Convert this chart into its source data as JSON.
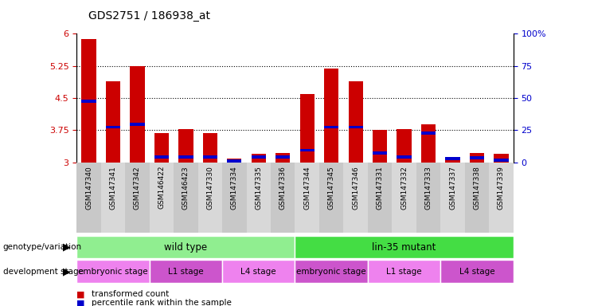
{
  "title": "GDS2751 / 186938_at",
  "samples": [
    "GSM147340",
    "GSM147341",
    "GSM147342",
    "GSM146422",
    "GSM146423",
    "GSM147330",
    "GSM147334",
    "GSM147335",
    "GSM147336",
    "GSM147344",
    "GSM147345",
    "GSM147346",
    "GSM147331",
    "GSM147332",
    "GSM147333",
    "GSM147337",
    "GSM147338",
    "GSM147339"
  ],
  "red_values": [
    5.88,
    4.88,
    5.25,
    3.68,
    3.78,
    3.68,
    3.08,
    3.2,
    3.22,
    4.6,
    5.18,
    4.88,
    3.75,
    3.78,
    3.88,
    3.12,
    3.22,
    3.2
  ],
  "blue_values": [
    4.42,
    3.82,
    3.88,
    3.12,
    3.12,
    3.12,
    3.03,
    3.12,
    3.12,
    3.28,
    3.82,
    3.82,
    3.22,
    3.12,
    3.68,
    3.08,
    3.1,
    3.05
  ],
  "ylim_left": [
    3.0,
    6.0
  ],
  "ylim_right": [
    0,
    100
  ],
  "yticks_left": [
    3.0,
    3.75,
    4.5,
    5.25,
    6.0
  ],
  "yticks_right": [
    0,
    25,
    50,
    75,
    100
  ],
  "ytick_labels_left": [
    "3",
    "3.75",
    "4.5",
    "5.25",
    "6"
  ],
  "ytick_labels_right": [
    "0",
    "25",
    "50",
    "75",
    "100%"
  ],
  "hlines": [
    3.75,
    4.5,
    5.25
  ],
  "bar_color": "#cc0000",
  "blue_color": "#0000cc",
  "bar_width": 0.6,
  "genotype_groups": [
    {
      "label": "wild type",
      "start": 0,
      "end": 9,
      "color": "#90ee90"
    },
    {
      "label": "lin-35 mutant",
      "start": 9,
      "end": 18,
      "color": "#44dd44"
    }
  ],
  "stage_groups": [
    {
      "label": "embryonic stage",
      "start": 0,
      "end": 3,
      "color": "#ee82ee"
    },
    {
      "label": "L1 stage",
      "start": 3,
      "end": 6,
      "color": "#cc55cc"
    },
    {
      "label": "L4 stage",
      "start": 6,
      "end": 9,
      "color": "#ee82ee"
    },
    {
      "label": "embryonic stage",
      "start": 9,
      "end": 12,
      "color": "#cc55cc"
    },
    {
      "label": "L1 stage",
      "start": 12,
      "end": 15,
      "color": "#ee82ee"
    },
    {
      "label": "L4 stage",
      "start": 15,
      "end": 18,
      "color": "#cc55cc"
    }
  ],
  "left_label_color": "#cc0000",
  "right_label_color": "#0000cc"
}
